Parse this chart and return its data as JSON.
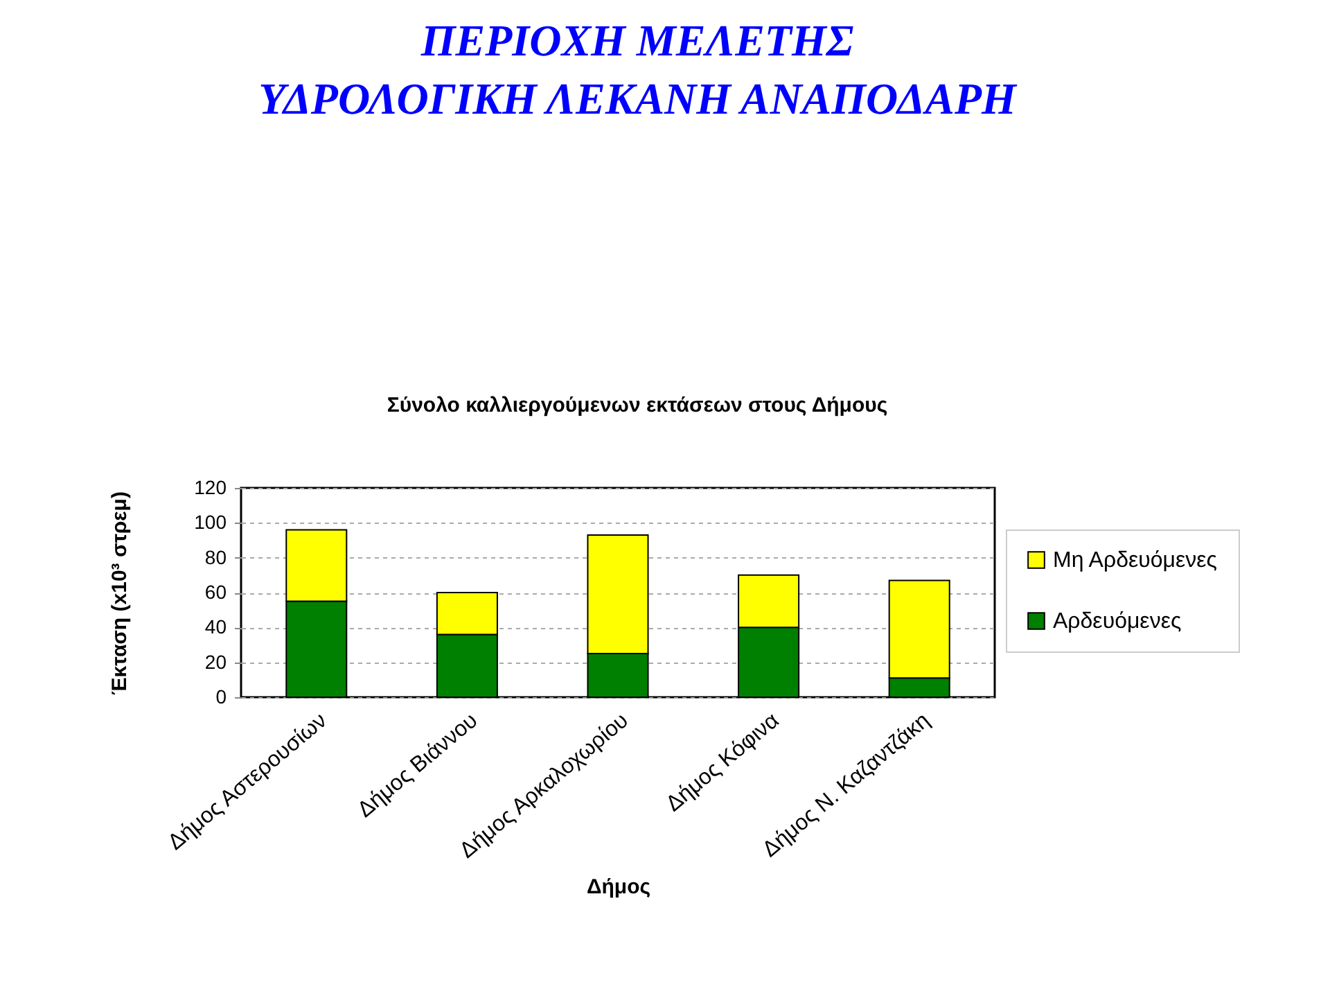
{
  "chart_data": {
    "type": "bar",
    "title": "ΠΕΡΙΟΧΗ ΜΕΛΕΤΗΣ\nΥΔΡΟΛΟΓΙΚΗ ΛΕΚΑΝΗ ΑΝΑΠΟΔΑΡΗ",
    "subtitle": "Σύνολο καλλιεργούμενων εκτάσεων στους Δήμους",
    "xlabel": "Δήμος",
    "ylabel": "Έκταση (x10³ στρεμ)",
    "categories": [
      "Δήμος Αστερουσίων",
      "Δήμος Βιάννου",
      "Δήμος Αρκαλοχωρίου",
      "Δήμος Κόφινα",
      "Δήμος Ν. Καζαντζάκη"
    ],
    "series": [
      {
        "name": "Αρδευόμενες",
        "color": "#008000",
        "values": [
          55,
          36,
          25,
          40,
          11
        ]
      },
      {
        "name": "Μη Αρδευόμενες",
        "color": "#ffff00",
        "values": [
          41,
          24,
          68,
          30,
          56
        ]
      }
    ],
    "stacked": true,
    "ylim": [
      0,
      120
    ],
    "yticks": [
      0,
      20,
      40,
      60,
      80,
      100,
      120
    ],
    "grid": "y",
    "legend": "right"
  }
}
